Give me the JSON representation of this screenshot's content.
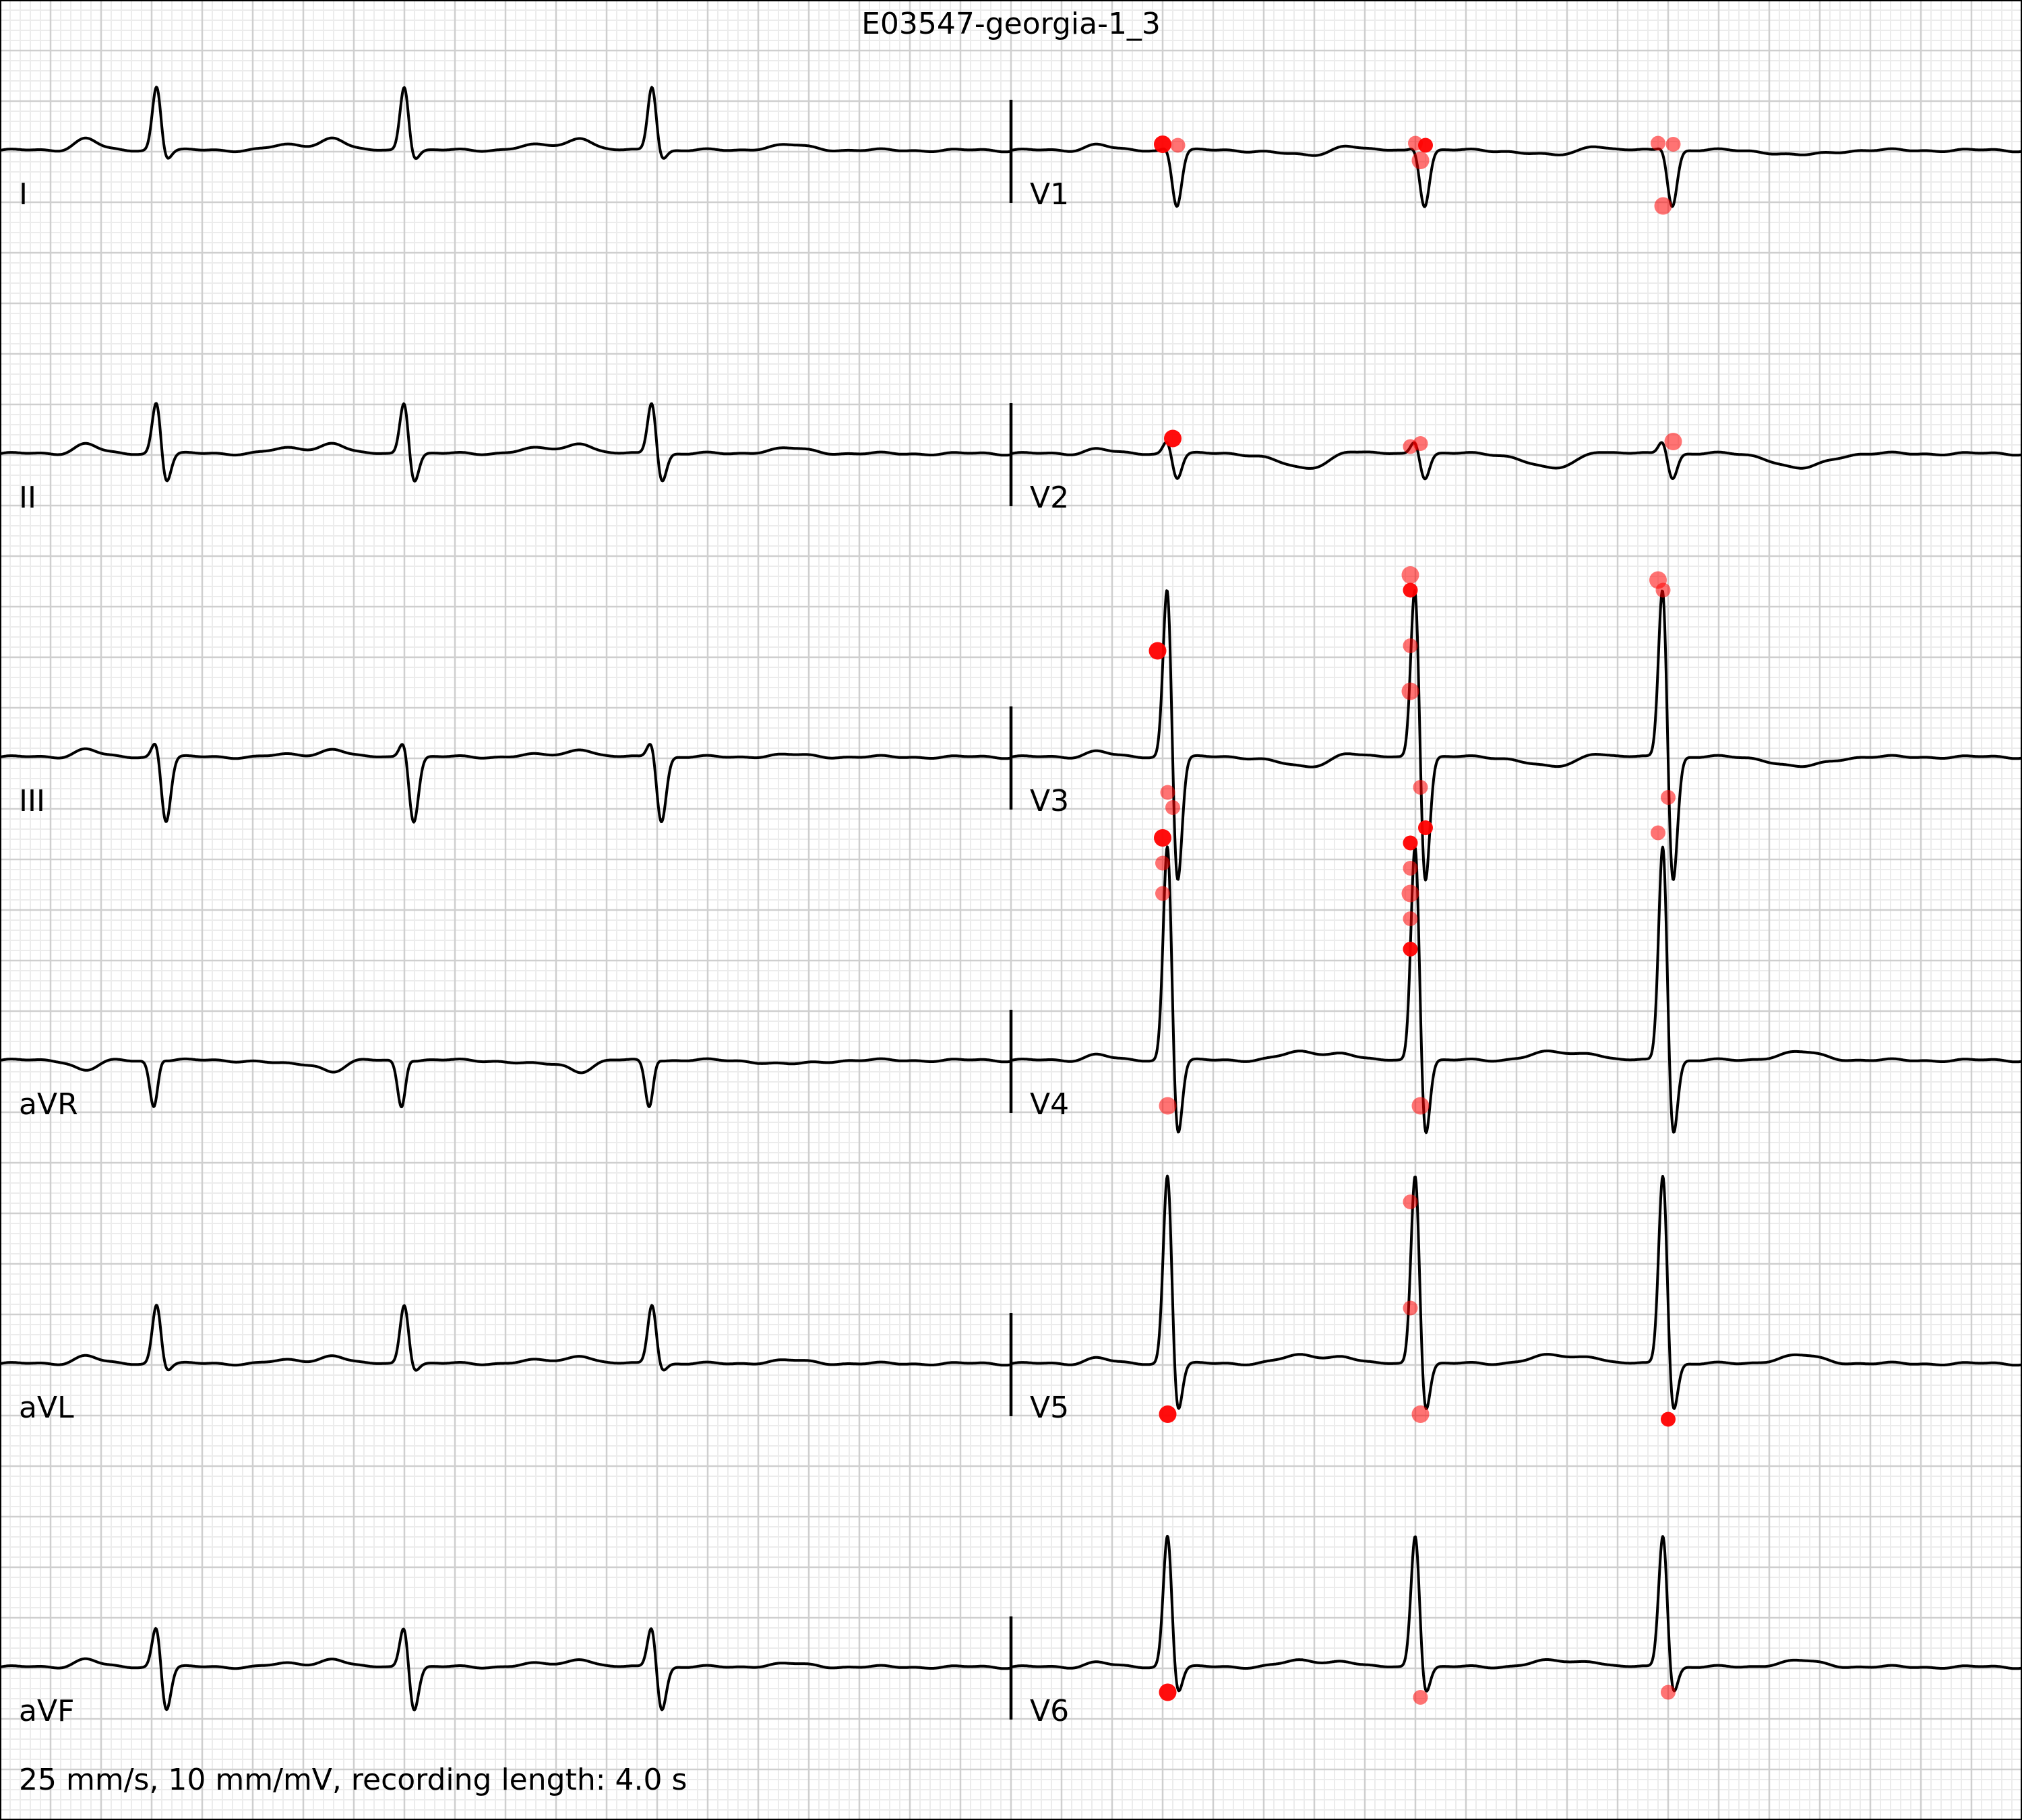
{
  "title": "E03547-georgia-1_3",
  "footer": "25 mm/s, 10 mm/mV, recording length: 4.0 s",
  "colors": {
    "grid_minor": "#ececec",
    "grid_major": "#cfcfcf",
    "trace": "#000000",
    "marker": "#ff0000"
  },
  "chart_data": {
    "type": "line",
    "layout": "6 rows x 2 columns",
    "paper_speed_mm_per_s": 25,
    "gain_mm_per_mV": 10,
    "recording_length_s": 4.0,
    "grid": true,
    "column_duration_s": 2.0,
    "leads": [
      {
        "name": "I",
        "column": 0,
        "row": 0,
        "beats_s": [
          0.31,
          0.8,
          1.29
        ],
        "r_mV": 0.65,
        "q_mV": 0.0,
        "s_mV": -0.1,
        "p_mV": 0.12,
        "t_mV": 0.05,
        "markers": []
      },
      {
        "name": "II",
        "column": 0,
        "row": 1,
        "beats_s": [
          0.31,
          0.8,
          1.29
        ],
        "r_mV": 0.55,
        "q_mV": 0.0,
        "s_mV": -0.3,
        "p_mV": 0.1,
        "t_mV": 0.05,
        "markers": []
      },
      {
        "name": "III",
        "column": 0,
        "row": 2,
        "beats_s": [
          0.31,
          0.8,
          1.29
        ],
        "r_mV": 0.2,
        "q_mV": 0.0,
        "s_mV": -0.65,
        "p_mV": 0.08,
        "t_mV": 0.02,
        "markers": []
      },
      {
        "name": "aVR",
        "column": 0,
        "row": 3,
        "beats_s": [
          0.31,
          0.8,
          1.29
        ],
        "r_mV": 0.12,
        "q_mV": -0.55,
        "s_mV": 0.0,
        "p_mV": -0.1,
        "t_mV": -0.04,
        "markers": []
      },
      {
        "name": "aVL",
        "column": 0,
        "row": 4,
        "beats_s": [
          0.31,
          0.8,
          1.29
        ],
        "r_mV": 0.6,
        "q_mV": 0.0,
        "s_mV": -0.08,
        "p_mV": 0.08,
        "t_mV": 0.03,
        "markers": []
      },
      {
        "name": "aVF",
        "column": 0,
        "row": 5,
        "beats_s": [
          0.31,
          0.8,
          1.29
        ],
        "r_mV": 0.45,
        "q_mV": 0.0,
        "s_mV": -0.45,
        "p_mV": 0.08,
        "t_mV": 0.03,
        "markers": []
      },
      {
        "name": "V1",
        "column": 1,
        "row": 0,
        "beats_s": [
          0.31,
          0.8,
          1.29
        ],
        "r_mV": 0.05,
        "q_mV": 0.0,
        "s_mV": -0.55,
        "p_mV": 0.06,
        "t_mV": -0.05,
        "markers": [
          [
            0.3,
            0.06
          ],
          [
            0.33,
            0.05
          ],
          [
            0.8,
            0.07
          ],
          [
            0.81,
            -0.1
          ],
          [
            0.82,
            0.05
          ],
          [
            1.28,
            0.07
          ],
          [
            1.29,
            -0.55
          ],
          [
            1.31,
            0.06
          ]
        ]
      },
      {
        "name": "V2",
        "column": 1,
        "row": 1,
        "beats_s": [
          0.31,
          0.8,
          1.29
        ],
        "r_mV": 0.15,
        "q_mV": 0.0,
        "s_mV": -0.25,
        "p_mV": 0.05,
        "t_mV": -0.15,
        "markers": [
          [
            0.32,
            0.15
          ],
          [
            0.79,
            0.07
          ],
          [
            0.81,
            0.1
          ],
          [
            1.31,
            0.12
          ]
        ]
      },
      {
        "name": "V3",
        "column": 1,
        "row": 2,
        "beats_s": [
          0.31,
          0.8,
          1.29
        ],
        "r_mV": 1.85,
        "q_mV": 0.0,
        "s_mV": -1.35,
        "p_mV": 0.06,
        "t_mV": -0.1,
        "markers": [
          [
            0.29,
            1.05
          ],
          [
            0.31,
            -0.35
          ],
          [
            0.32,
            -0.5
          ],
          [
            0.79,
            1.8
          ],
          [
            0.79,
            1.65
          ],
          [
            0.79,
            1.1
          ],
          [
            0.79,
            0.65
          ],
          [
            0.81,
            -0.3
          ],
          [
            0.82,
            -0.7
          ],
          [
            1.28,
            1.75
          ],
          [
            1.29,
            1.65
          ],
          [
            1.3,
            -0.4
          ]
        ]
      },
      {
        "name": "V4",
        "column": 1,
        "row": 3,
        "beats_s": [
          0.31,
          0.8,
          1.29
        ],
        "r_mV": 2.25,
        "q_mV": 0.0,
        "s_mV": -0.85,
        "p_mV": 0.06,
        "t_mV": 0.08,
        "markers": [
          [
            0.3,
            2.2
          ],
          [
            0.3,
            1.95
          ],
          [
            0.3,
            1.65
          ],
          [
            0.31,
            -0.45
          ],
          [
            0.79,
            2.15
          ],
          [
            0.79,
            1.9
          ],
          [
            0.79,
            1.65
          ],
          [
            0.79,
            1.4
          ],
          [
            0.79,
            1.1
          ],
          [
            0.81,
            -0.45
          ],
          [
            1.28,
            2.25
          ]
        ]
      },
      {
        "name": "V5",
        "column": 1,
        "row": 4,
        "beats_s": [
          0.31,
          0.8,
          1.29
        ],
        "r_mV": 1.95,
        "q_mV": 0.0,
        "s_mV": -0.55,
        "p_mV": 0.06,
        "t_mV": 0.08,
        "markers": [
          [
            0.31,
            -0.5
          ],
          [
            0.79,
            1.6
          ],
          [
            0.79,
            0.55
          ],
          [
            0.81,
            -0.5
          ],
          [
            1.3,
            -0.55
          ]
        ]
      },
      {
        "name": "V6",
        "column": 1,
        "row": 5,
        "beats_s": [
          0.31,
          0.8,
          1.29
        ],
        "r_mV": 1.35,
        "q_mV": 0.0,
        "s_mV": -0.3,
        "p_mV": 0.05,
        "t_mV": 0.06,
        "markers": [
          [
            0.31,
            -0.25
          ],
          [
            0.81,
            -0.3
          ],
          [
            1.3,
            -0.25
          ]
        ]
      }
    ]
  }
}
